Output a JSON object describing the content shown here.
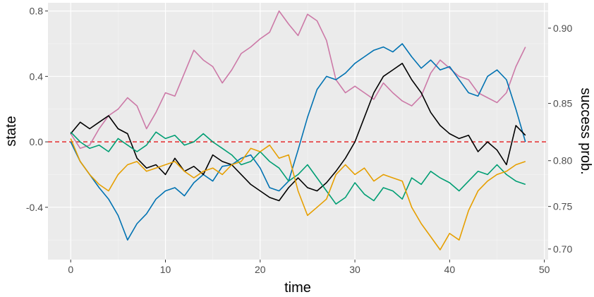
{
  "chart_data": {
    "type": "line",
    "xlabel": "time",
    "ylabel": "state",
    "ylabel_right": "success prob.",
    "xlim": [
      -2.4,
      50.4
    ],
    "ylim": [
      -0.72,
      0.85
    ],
    "x_ticks": [
      0,
      10,
      20,
      30,
      40,
      50
    ],
    "x_tick_labels": [
      "0",
      "10",
      "20",
      "30",
      "40",
      "50"
    ],
    "y_ticks": [
      -0.4,
      0.0,
      0.4,
      0.8
    ],
    "y_tick_labels": [
      "-0.4",
      "0.0",
      "0.4",
      "0.8"
    ],
    "y2_ticks": [
      {
        "label": "0.70",
        "state": -0.655
      },
      {
        "label": "0.75",
        "state": -0.395
      },
      {
        "label": "0.80",
        "state": -0.115
      },
      {
        "label": "0.85",
        "state": 0.235
      },
      {
        "label": "0.90",
        "state": 0.695
      }
    ],
    "grid": true,
    "background": "#ebebeb",
    "reference_line": {
      "y": 0.0,
      "color": "#e41a1c",
      "style": "dashed"
    },
    "series": [
      {
        "color": "#CC79A7",
        "x": [
          0,
          1,
          2,
          3,
          4,
          5,
          6,
          7,
          8,
          9,
          10,
          11,
          12,
          13,
          14,
          15,
          16,
          17,
          18,
          19,
          20,
          21,
          22,
          23,
          24,
          25,
          26,
          27,
          28,
          29,
          30,
          31,
          32,
          33,
          34,
          35,
          36,
          37,
          38,
          39,
          40,
          41,
          42,
          43,
          44,
          45,
          46,
          47,
          48
        ],
        "y": [
          0.05,
          -0.04,
          -0.02,
          0.08,
          0.16,
          0.2,
          0.27,
          0.22,
          0.08,
          0.18,
          0.3,
          0.28,
          0.42,
          0.56,
          0.5,
          0.46,
          0.36,
          0.44,
          0.54,
          0.58,
          0.63,
          0.67,
          0.8,
          0.72,
          0.65,
          0.78,
          0.74,
          0.62,
          0.38,
          0.3,
          0.34,
          0.3,
          0.26,
          0.36,
          0.3,
          0.25,
          0.22,
          0.28,
          0.42,
          0.5,
          0.45,
          0.4,
          0.38,
          0.3,
          0.27,
          0.24,
          0.3,
          0.46,
          0.58
        ]
      },
      {
        "color": "#0072B2",
        "x": [
          0,
          1,
          2,
          3,
          4,
          5,
          6,
          7,
          8,
          9,
          10,
          11,
          12,
          13,
          14,
          15,
          16,
          17,
          18,
          19,
          20,
          21,
          22,
          23,
          24,
          25,
          26,
          27,
          28,
          29,
          30,
          31,
          32,
          33,
          34,
          35,
          36,
          37,
          38,
          39,
          40,
          41,
          42,
          43,
          44,
          45,
          46,
          47,
          48
        ],
        "y": [
          0.0,
          -0.12,
          -0.2,
          -0.28,
          -0.35,
          -0.45,
          -0.6,
          -0.5,
          -0.44,
          -0.35,
          -0.3,
          -0.28,
          -0.33,
          -0.25,
          -0.2,
          -0.24,
          -0.15,
          -0.14,
          -0.1,
          -0.08,
          -0.16,
          -0.28,
          -0.3,
          -0.24,
          -0.05,
          0.15,
          0.32,
          0.4,
          0.38,
          0.42,
          0.48,
          0.52,
          0.56,
          0.58,
          0.55,
          0.6,
          0.52,
          0.45,
          0.5,
          0.44,
          0.46,
          0.38,
          0.3,
          0.28,
          0.4,
          0.44,
          0.38,
          0.2,
          0.0
        ]
      },
      {
        "color": "#000000",
        "x": [
          0,
          1,
          2,
          3,
          4,
          5,
          6,
          7,
          8,
          9,
          10,
          11,
          12,
          13,
          14,
          15,
          16,
          17,
          18,
          19,
          20,
          21,
          22,
          23,
          24,
          25,
          26,
          27,
          28,
          29,
          30,
          31,
          32,
          33,
          34,
          35,
          36,
          37,
          38,
          39,
          40,
          41,
          42,
          43,
          44,
          45,
          46,
          47,
          48
        ],
        "y": [
          0.05,
          0.12,
          0.08,
          0.12,
          0.16,
          0.08,
          0.05,
          -0.1,
          -0.16,
          -0.14,
          -0.2,
          -0.1,
          -0.18,
          -0.15,
          -0.2,
          -0.08,
          -0.12,
          -0.14,
          -0.2,
          -0.26,
          -0.3,
          -0.34,
          -0.36,
          -0.28,
          -0.22,
          -0.28,
          -0.3,
          -0.25,
          -0.18,
          -0.1,
          0.0,
          0.15,
          0.3,
          0.4,
          0.44,
          0.48,
          0.38,
          0.3,
          0.18,
          0.1,
          0.05,
          0.02,
          0.04,
          -0.06,
          0.0,
          -0.05,
          -0.14,
          0.1,
          0.04
        ]
      },
      {
        "color": "#009E73",
        "x": [
          0,
          1,
          2,
          3,
          4,
          5,
          6,
          7,
          8,
          9,
          10,
          11,
          12,
          13,
          14,
          15,
          16,
          17,
          18,
          19,
          20,
          21,
          22,
          23,
          24,
          25,
          26,
          27,
          28,
          29,
          30,
          31,
          32,
          33,
          34,
          35,
          36,
          37,
          38,
          39,
          40,
          41,
          42,
          43,
          44,
          45,
          46,
          47,
          48
        ],
        "y": [
          0.06,
          0.0,
          -0.04,
          -0.02,
          -0.06,
          0.02,
          -0.02,
          -0.06,
          -0.02,
          0.06,
          0.02,
          0.04,
          -0.02,
          0.0,
          0.05,
          0.0,
          -0.04,
          -0.08,
          -0.14,
          -0.12,
          -0.06,
          -0.12,
          -0.16,
          -0.24,
          -0.2,
          -0.14,
          -0.22,
          -0.3,
          -0.38,
          -0.34,
          -0.25,
          -0.32,
          -0.36,
          -0.28,
          -0.3,
          -0.35,
          -0.22,
          -0.26,
          -0.18,
          -0.22,
          -0.25,
          -0.3,
          -0.24,
          -0.18,
          -0.2,
          -0.14,
          -0.2,
          -0.24,
          -0.26
        ]
      },
      {
        "color": "#E69F00",
        "x": [
          0,
          1,
          2,
          3,
          4,
          5,
          6,
          7,
          8,
          9,
          10,
          11,
          12,
          13,
          14,
          15,
          16,
          17,
          18,
          19,
          20,
          21,
          22,
          23,
          24,
          25,
          26,
          27,
          28,
          29,
          30,
          31,
          32,
          33,
          34,
          35,
          36,
          37,
          38,
          39,
          40,
          41,
          42,
          43,
          44,
          45,
          46,
          47,
          48
        ],
        "y": [
          0.02,
          -0.12,
          -0.2,
          -0.26,
          -0.3,
          -0.2,
          -0.14,
          -0.12,
          -0.18,
          -0.16,
          -0.14,
          -0.12,
          -0.18,
          -0.22,
          -0.18,
          -0.16,
          -0.2,
          -0.14,
          -0.12,
          -0.04,
          -0.06,
          -0.02,
          -0.1,
          -0.08,
          -0.3,
          -0.45,
          -0.4,
          -0.35,
          -0.2,
          -0.14,
          -0.2,
          -0.16,
          -0.24,
          -0.2,
          -0.22,
          -0.24,
          -0.4,
          -0.5,
          -0.58,
          -0.66,
          -0.56,
          -0.6,
          -0.42,
          -0.3,
          -0.24,
          -0.2,
          -0.18,
          -0.14,
          -0.12
        ]
      }
    ]
  }
}
